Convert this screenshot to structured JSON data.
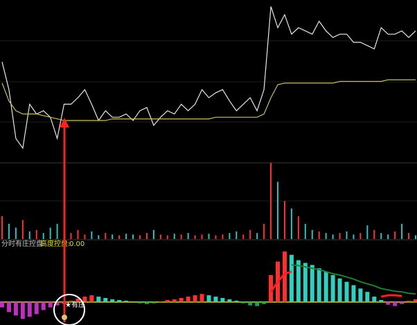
{
  "chart_data": [
    {
      "type": "line",
      "ylim": [
        0,
        100
      ],
      "series": [
        {
          "color": "#e8e8e8",
          "values": [
            62,
            45,
            15,
            9,
            36,
            30,
            32,
            28,
            15,
            36,
            36,
            40,
            45,
            36,
            26,
            32,
            28,
            28,
            30,
            26,
            32,
            34,
            23,
            28,
            32,
            30,
            36,
            32,
            36,
            45,
            40,
            43,
            45,
            38,
            32,
            36,
            40,
            32,
            45,
            96,
            83,
            91,
            79,
            83,
            81,
            79,
            87,
            81,
            77,
            79,
            79,
            74,
            74,
            72,
            70,
            83,
            79,
            79,
            81,
            77,
            81
          ]
        },
        {
          "color": "#c8c060",
          "values": [
            49,
            38,
            32,
            30,
            30,
            30,
            29,
            28,
            27,
            26,
            26,
            26,
            26,
            26,
            26,
            26,
            27,
            27,
            27,
            27,
            27,
            27,
            27,
            27,
            27,
            27,
            27,
            27,
            27,
            27,
            27,
            28,
            28,
            28,
            28,
            28,
            28,
            28,
            30,
            40,
            48,
            49,
            49,
            49,
            49,
            49,
            49,
            49,
            49,
            50,
            50,
            50,
            50,
            50,
            50,
            50,
            51,
            51,
            51,
            51,
            51
          ]
        }
      ]
    },
    {
      "type": "bar",
      "ylim": [
        0,
        100
      ],
      "values": [
        30,
        20,
        15,
        25,
        10,
        12,
        8,
        15,
        20,
        10,
        8,
        12,
        6,
        10,
        5,
        8,
        6,
        5,
        7,
        6,
        5,
        8,
        12,
        6,
        5,
        7,
        6,
        8,
        5,
        6,
        7,
        5,
        6,
        8,
        10,
        6,
        12,
        8,
        20,
        100,
        75,
        50,
        40,
        30,
        20,
        12,
        10,
        8,
        6,
        8,
        10,
        6,
        8,
        18,
        12,
        8,
        6,
        10,
        20,
        8,
        5
      ],
      "colors": [
        "#ff3030",
        "#30c0c0",
        "#30c0c0",
        "#ff3030",
        "#30c0c0",
        "#ff3030",
        "#30c0c0",
        "#30c0c0",
        "#30c0c0",
        "#ff3030",
        "#ff3030",
        "#ff3030",
        "#ff3030",
        "#30c0c0",
        "#30c0c0",
        "#ff3030",
        "#30c0c0",
        "#ff3030",
        "#30c0c0",
        "#30c0c0",
        "#ff3030",
        "#ff3030",
        "#30c0c0",
        "#ff3030",
        "#ff3030",
        "#30c0c0",
        "#ff3030",
        "#30c0c0",
        "#ff3030",
        "#ff3030",
        "#30c0c0",
        "#ff3030",
        "#ff3030",
        "#30c0c0",
        "#30c0c0",
        "#ff3030",
        "#ff3030",
        "#30c0c0",
        "#ff3030",
        "#ff3030",
        "#30c0c0",
        "#ff3030",
        "#30c0c0",
        "#ff3030",
        "#30c0c0",
        "#30c0c0",
        "#ff3030",
        "#30c0c0",
        "#30c0c0",
        "#ff3030",
        "#30c0c0",
        "#30c0c0",
        "#ff3030",
        "#30c0c0",
        "#ff3030",
        "#30c0c0",
        "#30c0c0",
        "#ff3030",
        "#30c0c0",
        "#ff3030",
        "#30c0c0"
      ]
    },
    {
      "type": "bar",
      "title": "分时有庄控盘",
      "readout_name": "高度控盘:",
      "readout": "0.00",
      "annotation": "★有庄",
      "ylim": [
        -30,
        80
      ],
      "values": [
        -8,
        -15,
        -20,
        -25,
        -22,
        -18,
        -12,
        -8,
        -5,
        -3,
        2,
        5,
        8,
        10,
        8,
        6,
        4,
        3,
        2,
        1,
        -2,
        -3,
        -2,
        1,
        3,
        4,
        6,
        8,
        10,
        12,
        10,
        8,
        6,
        4,
        2,
        -2,
        -5,
        -6,
        -3,
        40,
        60,
        75,
        70,
        62,
        58,
        55,
        50,
        45,
        40,
        35,
        30,
        25,
        20,
        15,
        8,
        3,
        -4,
        -6,
        -3,
        2,
        4
      ],
      "colors": [
        "#c030c0",
        "#c030c0",
        "#c030c0",
        "#c030c0",
        "#c030c0",
        "#c030c0",
        "#c030c0",
        "#c030c0",
        "#c030c0",
        "#c030c0",
        "#ff3030",
        "#ff3030",
        "#ff3030",
        "#ff3030",
        "#30d0c0",
        "#30d0c0",
        "#30d0c0",
        "#30d0c0",
        "#30d0c0",
        "#30d0c0",
        "#20a060",
        "#20a060",
        "#20a060",
        "#ff3030",
        "#ff3030",
        "#ff3030",
        "#ff3030",
        "#ff3030",
        "#ff3030",
        "#ff3030",
        "#30d0c0",
        "#30d0c0",
        "#30d0c0",
        "#30d0c0",
        "#30d0c0",
        "#20a060",
        "#20a060",
        "#20a060",
        "#20a060",
        "#ff3030",
        "#ff3030",
        "#ff3030",
        "#30d0c0",
        "#30d0c0",
        "#30d0c0",
        "#30d0c0",
        "#30d0c0",
        "#30d0c0",
        "#30d0c0",
        "#30d0c0",
        "#30d0c0",
        "#30d0c0",
        "#30d0c0",
        "#30d0c0",
        "#30d0c0",
        "#30d0c0",
        "#c030c0",
        "#c030c0",
        "#c030c0",
        "#ff3030",
        "#ff3030"
      ],
      "lines": [
        {
          "color": "#208030",
          "values": [
            null,
            null,
            null,
            null,
            null,
            null,
            null,
            null,
            null,
            null,
            null,
            null,
            null,
            null,
            null,
            null,
            null,
            null,
            null,
            null,
            null,
            null,
            null,
            null,
            null,
            null,
            null,
            null,
            null,
            null,
            null,
            null,
            null,
            null,
            null,
            null,
            null,
            null,
            null,
            null,
            null,
            null,
            55,
            54,
            52,
            50,
            48,
            45,
            42,
            40,
            37,
            34,
            30,
            27,
            24,
            20,
            18,
            16,
            15,
            13,
            12
          ]
        },
        {
          "color": "#ff2020",
          "values": [
            null,
            null,
            null,
            null,
            null,
            null,
            null,
            null,
            null,
            null,
            null,
            null,
            null,
            null,
            null,
            null,
            null,
            null,
            null,
            null,
            null,
            null,
            null,
            null,
            null,
            null,
            null,
            null,
            null,
            null,
            null,
            null,
            null,
            null,
            null,
            null,
            null,
            null,
            null,
            15,
            30,
            42,
            45,
            null,
            null,
            null,
            null,
            null,
            null,
            null,
            null,
            null,
            null,
            null,
            null,
            8,
            10,
            10,
            9,
            null,
            null
          ]
        }
      ]
    }
  ]
}
